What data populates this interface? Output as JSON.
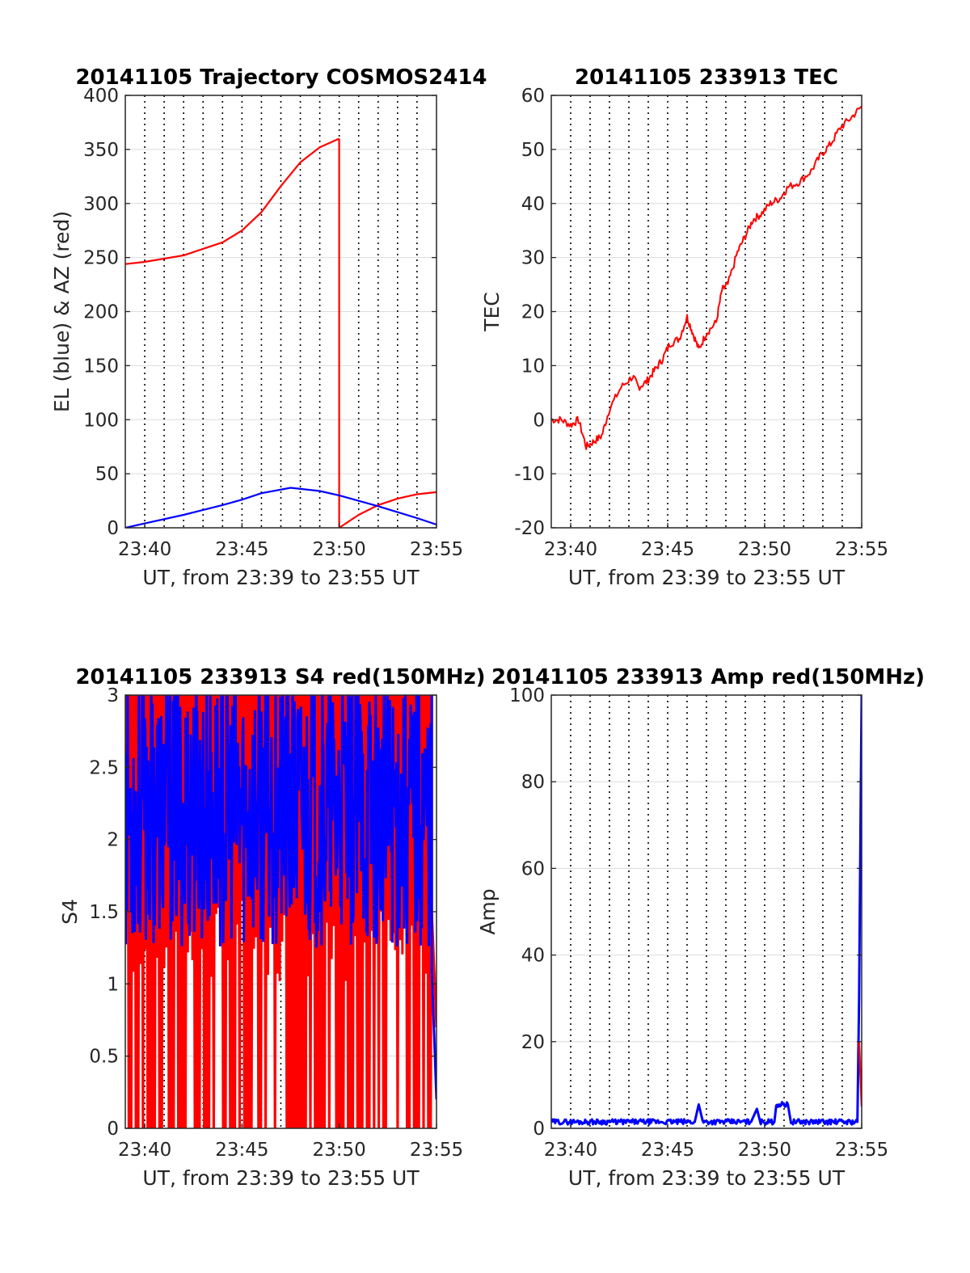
{
  "chart_data": [
    {
      "type": "line",
      "title": "20141105 Trajectory COSMOS2414",
      "xlabel": "UT, from 23:39 to 23:55 UT",
      "ylabel": "EL (blue) & AZ (red)",
      "xlim": [
        23.65,
        23.9167
      ],
      "ylim": [
        0,
        400
      ],
      "xticks": [
        23.6667,
        23.75,
        23.8333,
        23.9167
      ],
      "xtick_labels": [
        "23:40",
        "23:45",
        "23:50",
        "23:55"
      ],
      "yticks": [
        0,
        50,
        100,
        150,
        200,
        250,
        300,
        350,
        400
      ],
      "ytick_labels": [
        "0",
        "50",
        "100",
        "150",
        "200",
        "250",
        "300",
        "350",
        "400"
      ],
      "grid": "vertical dotted lines every minute; horizontal light gridlines",
      "series": [
        {
          "color": "#ff0000",
          "segments": [
            {
              "x": [
                23.65,
                23.6667,
                23.7,
                23.7333,
                23.75,
                23.7667,
                23.7833,
                23.8,
                23.8167,
                23.8333
              ],
              "y": [
                244,
                246,
                252,
                264,
                275,
                292,
                316,
                338,
                352,
                360
              ]
            },
            {
              "x": [
                23.8333,
                23.8333
              ],
              "y": [
                360,
                0
              ]
            },
            {
              "x": [
                23.8333,
                23.85,
                23.8667,
                23.8833,
                23.9,
                23.9167
              ],
              "y": [
                0,
                12,
                21,
                27,
                31,
                33
              ]
            }
          ]
        },
        {
          "color": "#0000ff",
          "segments": [
            {
              "x": [
                23.65,
                23.6667,
                23.7,
                23.7333,
                23.75,
                23.7667,
                23.7917,
                23.8167,
                23.8333,
                23.8667,
                23.9,
                23.9167
              ],
              "y": [
                0,
                4,
                12,
                21,
                26,
                32,
                37,
                34,
                30,
                20,
                9,
                3
              ]
            }
          ]
        }
      ]
    },
    {
      "type": "line",
      "title": "20141105 233913 TEC",
      "xlabel": "UT, from 23:39 to 23:55 UT",
      "ylabel": "TEC",
      "xlim": [
        23.65,
        23.9167
      ],
      "ylim": [
        -20,
        60
      ],
      "xticks": [
        23.6667,
        23.75,
        23.8333,
        23.9167
      ],
      "xtick_labels": [
        "23:40",
        "23:45",
        "23:50",
        "23:55"
      ],
      "yticks": [
        -20,
        -10,
        0,
        10,
        20,
        30,
        40,
        50,
        60
      ],
      "ytick_labels": [
        "-20",
        "-10",
        "0",
        "10",
        "20",
        "30",
        "40",
        "50",
        "60"
      ],
      "grid": "vertical dotted lines every minute; horizontal light gridlines",
      "series": [
        {
          "color": "#ff0000",
          "x": [
            23.65,
            23.6583,
            23.6667,
            23.6733,
            23.68,
            23.6867,
            23.6933,
            23.7,
            23.71,
            23.72,
            23.725,
            23.7317,
            23.7383,
            23.745,
            23.7517,
            23.76,
            23.7667,
            23.7717,
            23.7767,
            23.7833,
            23.7917,
            23.7967,
            23.8017,
            23.81,
            23.8167,
            23.8233,
            23.83,
            23.8383,
            23.8467,
            23.8533,
            23.8633,
            23.8733,
            23.8817,
            23.89,
            23.8983,
            23.9083,
            23.9167
          ],
          "y": [
            0,
            0,
            -1,
            0,
            -5,
            -4,
            -3,
            2,
            6,
            8,
            6,
            7,
            9,
            11,
            14,
            15,
            19,
            16,
            13,
            16,
            18,
            24,
            25,
            31,
            34,
            37,
            38,
            40,
            41,
            43,
            44,
            46,
            49,
            51,
            54,
            56,
            58
          ]
        }
      ]
    },
    {
      "type": "line",
      "title": "20141105 233913 S4 red(150MHz)",
      "xlabel": "UT, from 23:39 to 23:55 UT",
      "ylabel": "S4",
      "xlim": [
        23.65,
        23.9167
      ],
      "ylim": [
        0,
        3
      ],
      "xticks": [
        23.6667,
        23.75,
        23.8333,
        23.9167
      ],
      "xtick_labels": [
        "23:40",
        "23:45",
        "23:50",
        "23:55"
      ],
      "yticks": [
        0,
        0.5,
        1,
        1.5,
        2,
        2.5,
        3
      ],
      "ytick_labels": [
        "0",
        "0.5",
        "1",
        "1.5",
        "2",
        "2.5",
        "3"
      ],
      "grid": "vertical dotted lines every minute; horizontal light gridlines",
      "series": [
        {
          "color": "#ff0000",
          "description_note": "rapidly oscillating between 0 and 3 over 23:39-23:54, ending near 0.7 at 23:55",
          "x": [
            23.65,
            23.9167
          ],
          "y": [
            3,
            0.7
          ]
        },
        {
          "color": "#0000ff",
          "description_note": "rapidly oscillating between about 1.2 and 3, dropping to about 0.2 at 23:55",
          "x": [
            23.65,
            23.9167
          ],
          "y": [
            2.0,
            0.2
          ]
        }
      ]
    },
    {
      "type": "line",
      "title": "20141105 233913 Amp red(150MHz)",
      "xlabel": "UT, from 23:39 to 23:55 UT",
      "ylabel": "Amp",
      "xlim": [
        23.65,
        23.9167
      ],
      "ylim": [
        0,
        100
      ],
      "xticks": [
        23.6667,
        23.75,
        23.8333,
        23.9167
      ],
      "xtick_labels": [
        "23:40",
        "23:45",
        "23:50",
        "23:55"
      ],
      "yticks": [
        0,
        20,
        40,
        60,
        80,
        100
      ],
      "ytick_labels": [
        "0",
        "20",
        "40",
        "60",
        "80",
        "100"
      ],
      "grid": "vertical dotted lines every minute; horizontal light gridlines",
      "series": [
        {
          "color": "#0000ff",
          "x": [
            23.65,
            23.7,
            23.75,
            23.7733,
            23.7767,
            23.78,
            23.8,
            23.8217,
            23.8267,
            23.83,
            23.8417,
            23.8433,
            23.8533,
            23.856,
            23.87,
            23.9,
            23.913,
            23.9145,
            23.916,
            23.9167
          ],
          "y": [
            1.5,
            1.5,
            1.5,
            1.5,
            5.5,
            1.5,
            1.5,
            1.5,
            4.5,
            1.5,
            1.5,
            5.5,
            5.5,
            1.5,
            1.5,
            1.5,
            1.5,
            30,
            80,
            100
          ]
        },
        {
          "color": "#ff0000",
          "x": [
            23.9145,
            23.9167
          ],
          "y": [
            20,
            5
          ]
        }
      ]
    }
  ]
}
